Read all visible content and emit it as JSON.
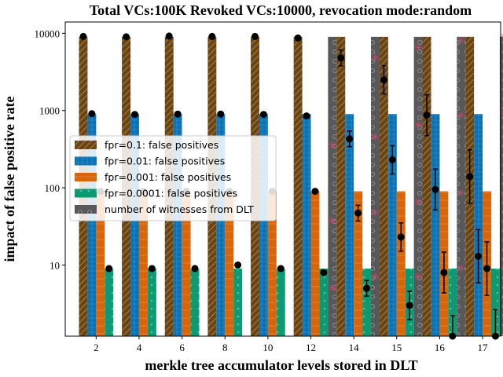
{
  "chart_data": {
    "type": "bar",
    "title": "Total VCs:100K Revoked VCs:10000, revocation mode:random",
    "xlabel": "merkle tree accumulator levels stored in DLT",
    "ylabel": "impact of false positive rate",
    "yscale": "log",
    "ylim": [
      1.2,
      14000
    ],
    "yticks": [
      10,
      100,
      1000,
      10000
    ],
    "ytick_labels": [
      "10",
      "100",
      "1000",
      "10000"
    ],
    "categories": [
      "2",
      "4",
      "6",
      "8",
      "10",
      "12",
      "14",
      "15",
      "16",
      "17"
    ],
    "legend_position": "center-left",
    "series": [
      {
        "name": "fpr=0.1: false positives",
        "color": "#6b4412",
        "hatch": "diagonal",
        "values": [
          9000,
          9000,
          9000,
          9000,
          9000,
          9000,
          9000,
          9000,
          9000,
          9000
        ],
        "markers": [
          9100,
          9000,
          9200,
          9100,
          9100,
          8700,
          4800,
          2500,
          870,
          140
        ]
      },
      {
        "name": "fpr=0.01: false positives",
        "color": "#0a72b4",
        "hatch": "cross",
        "values": [
          900,
          900,
          900,
          900,
          900,
          900,
          900,
          900,
          900,
          900
        ],
        "markers": [
          910,
          890,
          900,
          900,
          890,
          850,
          430,
          230,
          95,
          13
        ]
      },
      {
        "name": "fpr=0.001: false positives",
        "color": "#d9650a",
        "hatch": "vertical",
        "values": [
          90,
          90,
          90,
          90,
          90,
          90,
          90,
          90,
          90,
          90
        ],
        "markers": [
          90,
          90,
          90,
          90,
          90,
          90,
          47,
          23,
          8,
          9
        ]
      },
      {
        "name": "fpr=0.0001: false positives",
        "color": "#0d9a73",
        "hatch": "dots",
        "values": [
          9,
          9,
          9,
          9,
          9,
          9,
          9,
          9,
          9,
          9
        ],
        "markers": [
          9,
          9,
          9,
          10,
          9,
          8,
          5,
          3,
          1.2,
          1.2
        ]
      },
      {
        "name": "number of witnesses from DLT",
        "color": "#58585a",
        "hatch": "circles",
        "values": [
          0,
          0,
          0,
          0,
          0,
          9000,
          9000,
          9000,
          9000,
          9000
        ],
        "stacked_values": [
          0,
          0,
          0,
          0,
          0,
          [
            350,
            37,
            5
          ],
          [
            4700,
            450,
            47,
            7
          ],
          [
            6500,
            650,
            65,
            7
          ],
          [
            8000,
            850,
            85,
            9
          ],
          [
            9000,
            900,
            78,
            9
          ]
        ]
      }
    ]
  }
}
